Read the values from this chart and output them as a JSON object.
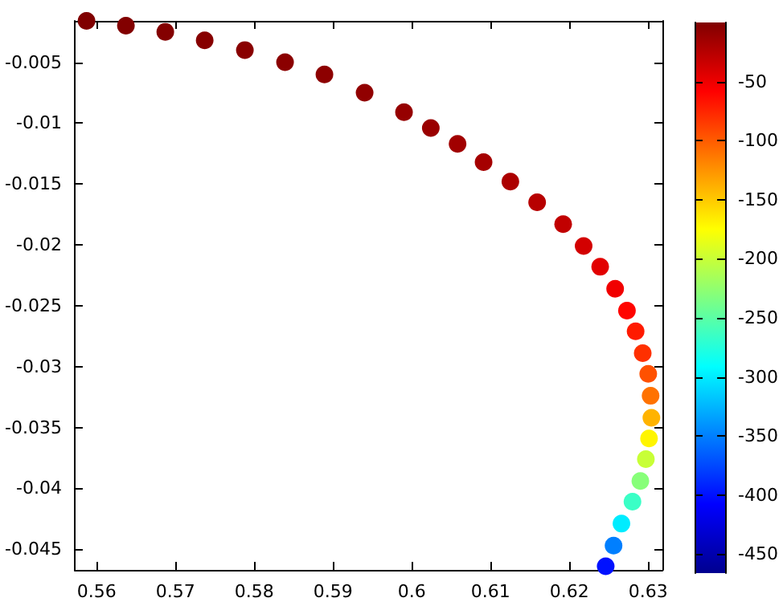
{
  "chart_data": {
    "type": "scatter",
    "marker": "circle",
    "x": [
      0.5587,
      0.5637,
      0.5687,
      0.5737,
      0.5788,
      0.5839,
      0.5889,
      0.594,
      0.599,
      0.6024,
      0.6058,
      0.6091,
      0.6125,
      0.6159,
      0.6192,
      0.6218,
      0.6239,
      0.6258,
      0.6273,
      0.6284,
      0.6293,
      0.63,
      0.6303,
      0.6304,
      0.6301,
      0.6297,
      0.629,
      0.628,
      0.6266,
      0.6256,
      0.6246
    ],
    "series": [
      {
        "values": [
          -0.0016,
          -0.002,
          -0.0025,
          -0.0032,
          -0.004,
          -0.005,
          -0.006,
          -0.0075,
          -0.0091,
          -0.0104,
          -0.0117,
          -0.0132,
          -0.0148,
          -0.0165,
          -0.0183,
          -0.0201,
          -0.0218,
          -0.0236,
          -0.0254,
          -0.0271,
          -0.0289,
          -0.0306,
          -0.0324,
          -0.0342,
          -0.0359,
          -0.0376,
          -0.0394,
          -0.0411,
          -0.0429,
          -0.0447,
          -0.0464
        ],
        "cvalues": [
          0,
          -1,
          -2,
          -3,
          -4,
          -5,
          -6,
          -8,
          -10,
          -12,
          -15,
          -17,
          -20,
          -25,
          -30,
          -38,
          -45,
          -52,
          -60,
          -70,
          -80,
          -95,
          -110,
          -140,
          -170,
          -200,
          -230,
          -265,
          -300,
          -350,
          -400
        ]
      }
    ],
    "xlim": [
      0.5572,
      0.6318
    ],
    "xticks": [
      0.56,
      0.57,
      0.58,
      0.59,
      0.6,
      0.61,
      0.62,
      0.63
    ],
    "ylim": [
      -0.0467,
      -0.0016
    ],
    "yticks": [
      -0.005,
      -0.01,
      -0.015,
      -0.02,
      -0.025,
      -0.03,
      -0.035,
      -0.04,
      -0.045
    ],
    "clim": [
      -466,
      0
    ],
    "cticks": [
      -50,
      -100,
      -150,
      -200,
      -250,
      -300,
      -350,
      -400,
      -450
    ],
    "grid": false
  }
}
